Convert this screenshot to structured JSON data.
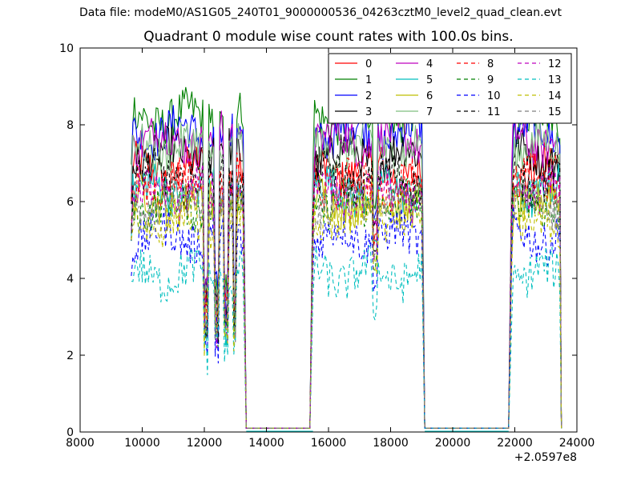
{
  "header": {
    "suptitle": "Data file: modeM0/AS1G05_240T01_9000000536_04263cztM0_level2_quad_clean.evt"
  },
  "chart_data": {
    "type": "line",
    "title": "Quadrant 0 module wise count rates with 100.0s bins.",
    "xlabel": "",
    "ylabel": "",
    "xlim": [
      8000,
      24000
    ],
    "ylim": [
      0,
      10
    ],
    "x_offset_label": "+2.0597e8",
    "xticks": [
      "8000",
      "10000",
      "12000",
      "14000",
      "16000",
      "18000",
      "20000",
      "22000",
      "24000"
    ],
    "yticks": [
      "0",
      "2",
      "4",
      "6",
      "8",
      "10"
    ],
    "grid": false,
    "legend_position": "top-right",
    "gaps": [
      [
        13350,
        15500
      ],
      [
        19100,
        21800
      ]
    ],
    "segments": [
      {
        "x_start": 9650,
        "x_end": 13250,
        "zero_after": 13350
      },
      {
        "zero_before": 15400,
        "x_start": 15500,
        "x_end": 19000,
        "zero_after": 19100
      },
      {
        "zero_before": 21800,
        "x_start": 21900,
        "x_end": 23450,
        "zero_after": 23500
      }
    ],
    "series": [
      {
        "name": "0",
        "color": "#ff0000",
        "dash": "solid",
        "mean": 6.8
      },
      {
        "name": "1",
        "color": "#008000",
        "dash": "solid",
        "mean": 8.2
      },
      {
        "name": "2",
        "color": "#0000ff",
        "dash": "solid",
        "mean": 7.8
      },
      {
        "name": "3",
        "color": "#000000",
        "dash": "solid",
        "mean": 7.2
      },
      {
        "name": "4",
        "color": "#bf00bf",
        "dash": "solid",
        "mean": 7.6
      },
      {
        "name": "5",
        "color": "#00bfbf",
        "dash": "solid",
        "mean": 6.3
      },
      {
        "name": "6",
        "color": "#bfbf00",
        "dash": "solid",
        "mean": 6.0
      },
      {
        "name": "7",
        "color": "#7fbf7f",
        "dash": "solid",
        "mean": 7.4
      },
      {
        "name": "8",
        "color": "#ff0000",
        "dash": "dashed",
        "mean": 6.5
      },
      {
        "name": "9",
        "color": "#008000",
        "dash": "dashed",
        "mean": 5.9
      },
      {
        "name": "10",
        "color": "#0000ff",
        "dash": "dashed",
        "mean": 5.1
      },
      {
        "name": "11",
        "color": "#000000",
        "dash": "dashed",
        "mean": 6.6
      },
      {
        "name": "12",
        "color": "#bf00bf",
        "dash": "dashed",
        "mean": 6.2
      },
      {
        "name": "13",
        "color": "#00bfbf",
        "dash": "dashed",
        "mean": 4.1
      },
      {
        "name": "14",
        "color": "#bfbf00",
        "dash": "dashed",
        "mean": 5.5
      },
      {
        "name": "15",
        "color": "#7f7f7f",
        "dash": "dashed",
        "mean": 6.0
      }
    ]
  }
}
